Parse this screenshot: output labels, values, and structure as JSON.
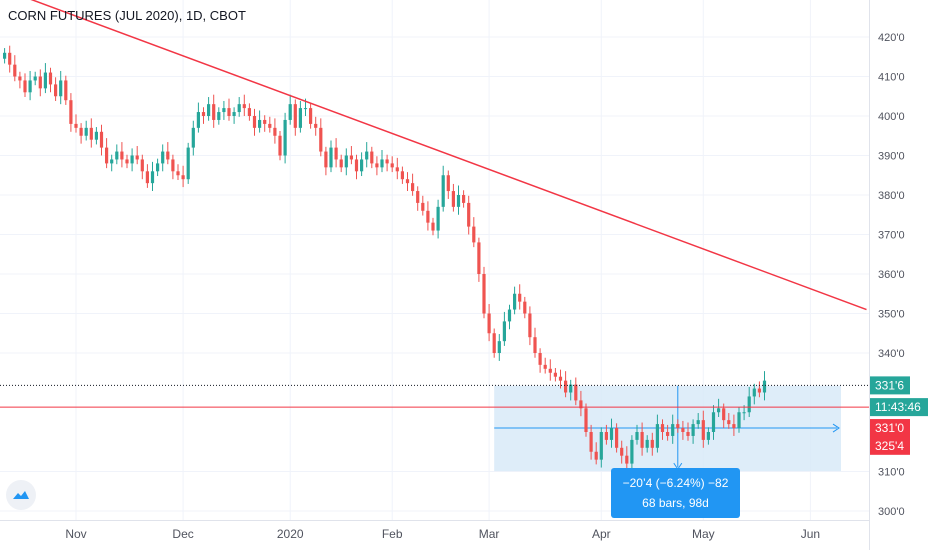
{
  "title": "CORN FUTURES (JUL 2020), 1D, CBOT",
  "colors": {
    "up": "#26a69a",
    "down": "#ef5350",
    "trendline": "#f23645",
    "hline": "#f23645",
    "range_fill": "#d6e8f8",
    "range_line": "#2196f3",
    "label_blue": "#2196f3",
    "label_teal": "#26a69a",
    "label_red": "#f23645",
    "grid": "#f0f3fa",
    "axis_text": "#50535e"
  },
  "icons": {
    "logo": "tradingview-cloud-icon"
  },
  "chart_data": {
    "type": "candlestick",
    "title": "CORN FUTURES (JUL 2020), 1D, CBOT",
    "ylim": [
      297,
      427
    ],
    "y_ticks": [
      "420'0",
      "410'0",
      "400'0",
      "390'0",
      "380'0",
      "370'0",
      "360'0",
      "350'0",
      "340'0",
      "310'0",
      "300'0"
    ],
    "y_tick_values": [
      420,
      410,
      400,
      390,
      380,
      370,
      360,
      350,
      340,
      310,
      300
    ],
    "x_labels": [
      {
        "label": "Nov",
        "bar": 14
      },
      {
        "label": "Dec",
        "bar": 35
      },
      {
        "label": "2020",
        "bar": 56
      },
      {
        "label": "Feb",
        "bar": 76
      },
      {
        "label": "Mar",
        "bar": 95
      },
      {
        "label": "Apr",
        "bar": 117
      },
      {
        "label": "May",
        "bar": 137
      },
      {
        "label": "Jun",
        "bar": 158
      }
    ],
    "closes": [
      416,
      413,
      410,
      409,
      406,
      409,
      410,
      407,
      411,
      408,
      405,
      409,
      404,
      398,
      397,
      395,
      397,
      394,
      396,
      392,
      388,
      389,
      391,
      389,
      388,
      390,
      389,
      386,
      383,
      386,
      388,
      391,
      389,
      386,
      385,
      384,
      392,
      397,
      401,
      400,
      403,
      399,
      401,
      402,
      400,
      401,
      403,
      402,
      400,
      397,
      399,
      398,
      397,
      395,
      390,
      399,
      403,
      397,
      402,
      402,
      398,
      397,
      391,
      387,
      392,
      389,
      387,
      390,
      389,
      386,
      389,
      391,
      388,
      387,
      389,
      388,
      387,
      386,
      384,
      383,
      381,
      378,
      376,
      373,
      371,
      377,
      385,
      381,
      377,
      380,
      378,
      372,
      368,
      360,
      350,
      345,
      340,
      343,
      348,
      351,
      355,
      353,
      350,
      344,
      340,
      337,
      336,
      335,
      334,
      333,
      330,
      332,
      328,
      326,
      320,
      315,
      313,
      320,
      318,
      321,
      316,
      314,
      312,
      318,
      320,
      316,
      318,
      316,
      322,
      320,
      319,
      322,
      321,
      320,
      319,
      322,
      323,
      318,
      320,
      325,
      326,
      323,
      322,
      321,
      325,
      325,
      329,
      331,
      330,
      333
    ],
    "range_stats": "−20’4 (−6.24%) −82",
    "range_bars": "68 bars, 98d",
    "trendline": {
      "from": {
        "bar": 0,
        "value": 432
      },
      "to": {
        "bar": 169,
        "value": 351
      }
    },
    "red_hline_value": 326.3,
    "dotted_line_value": 331.8,
    "range": {
      "from_bar": 96,
      "to_bar": 164,
      "high": 331.7,
      "low": 310.1,
      "mid": 321.0
    },
    "price_labels": [
      {
        "text": "331'6",
        "value": 331.8,
        "color": "teal"
      },
      {
        "text": "11:43:46",
        "value": 326.3,
        "color": "teal"
      },
      {
        "text": "331'0",
        "value": 321.0,
        "color": "red"
      },
      {
        "text": "325'4",
        "value": 316.5,
        "color": "red"
      }
    ]
  }
}
